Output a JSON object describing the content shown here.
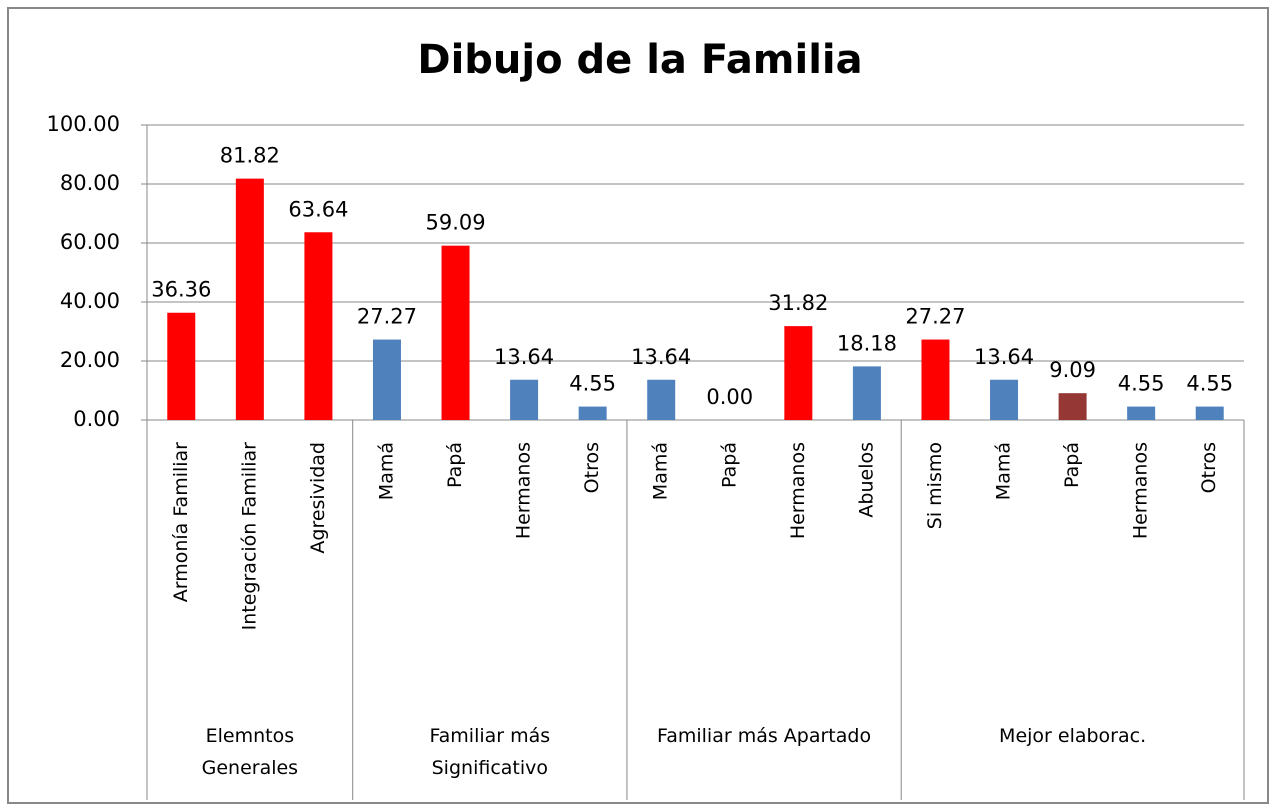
{
  "chart_data": {
    "type": "bar",
    "title": "Dibujo de la Familia",
    "groups": [
      {
        "name": "Elemntos Generales",
        "categories": [
          "Armonía Familiar",
          "Integración Familiar",
          "Agresividad"
        ]
      },
      {
        "name": "Familiar más Significativo",
        "categories": [
          "Mamá",
          "Papá",
          "Hermanos",
          "Otros"
        ]
      },
      {
        "name": "Familiar más Apartado",
        "categories": [
          "Mamá",
          "Papá",
          "Hermanos",
          "Abuelos"
        ]
      },
      {
        "name": "Mejor elaborac.",
        "categories": [
          "Si mismo",
          "Mamá",
          "Papá",
          "Hermanos",
          "Otros"
        ]
      }
    ],
    "values": [
      36.36,
      81.82,
      63.64,
      27.27,
      59.09,
      13.64,
      4.55,
      13.64,
      0,
      31.82,
      18.18,
      27.27,
      13.64,
      9.09,
      4.55,
      4.55
    ],
    "value_labels": [
      "36.36",
      "81.82",
      "63.64",
      "27.27",
      "59.09",
      "13.64",
      "4.55",
      "13.64",
      "0.00",
      "31.82",
      "18.18",
      "27.27",
      "13.64",
      "9.09",
      "4.55",
      "4.55"
    ],
    "colors": [
      "#ff0000",
      "#ff0000",
      "#ff0000",
      "#4f81bd",
      "#ff0000",
      "#4f81bd",
      "#4f81bd",
      "#4f81bd",
      "#4f81bd",
      "#ff0000",
      "#4f81bd",
      "#ff0000",
      "#4f81bd",
      "#953735",
      "#4f81bd",
      "#4f81bd"
    ],
    "ylim": [
      0,
      100
    ],
    "yticks": [
      {
        "value": 0,
        "label": "0.00"
      },
      {
        "value": 20,
        "label": "20.00"
      },
      {
        "value": 40,
        "label": "40.00"
      },
      {
        "value": 60,
        "label": "60.00"
      },
      {
        "value": 80,
        "label": "80.00"
      },
      {
        "value": 100,
        "label": "100.00"
      }
    ],
    "grid": true
  }
}
